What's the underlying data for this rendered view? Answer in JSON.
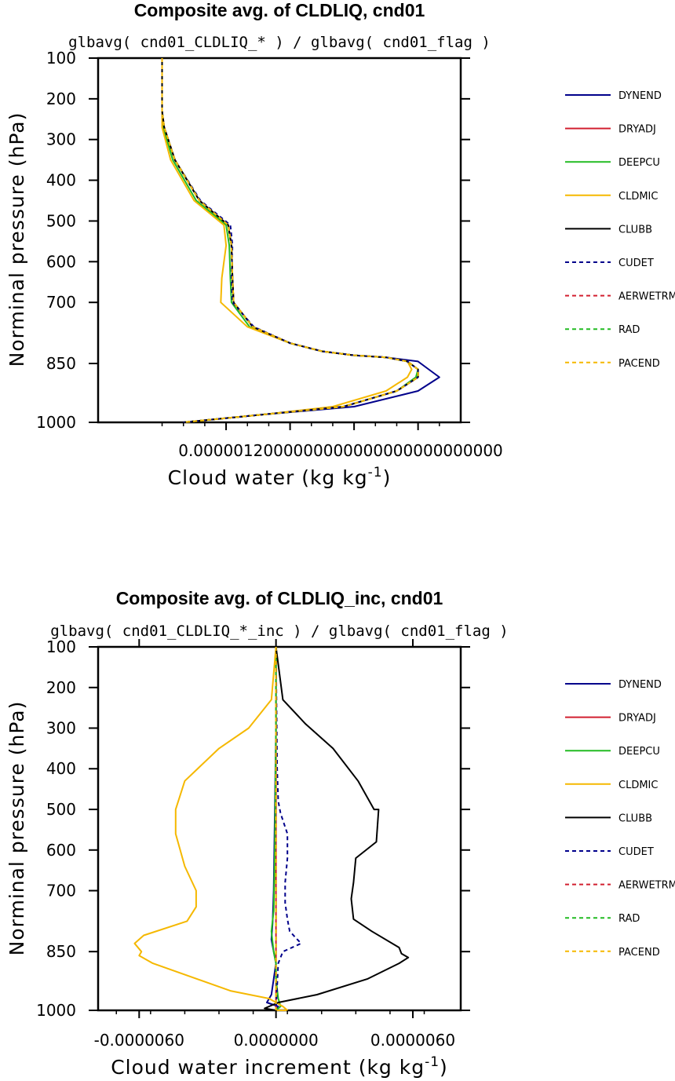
{
  "chart_data": [
    {
      "type": "line",
      "title": "Composite avg. of CLDLIQ, cnd01",
      "subtitle": "glbavg( cnd01_CLDLIQ_* ) / glbavg( cnd01_flag )",
      "xlabel": "Cloud water (kg kg",
      "xlabel_sup": "-1",
      "xlabel_end": ")",
      "ylabel": "Norminal pressure (hPa)",
      "xlim": [
        -6e-07,
        2.8e-06
      ],
      "ylim": [
        1000,
        100
      ],
      "y_ticks": [
        100,
        200,
        300,
        400,
        500,
        600,
        700,
        850,
        1000
      ],
      "x_tick_label": "0.0000012000000000000000000000000",
      "series": [
        {
          "name": "DYNEND",
          "color": "#00008b",
          "dash": "solid",
          "x": [
            0,
            0,
            2e-08,
            1.2e-07,
            3.5e-07,
            6.2e-07,
            6.5e-07,
            6.6e-07,
            6.7e-07,
            8.5e-07,
            1.2e-06,
            1.5e-06,
            1.8e-06,
            2.1e-06,
            2.4e-06,
            2.5e-06,
            2.6e-06,
            2.4e-06,
            1.8e-06,
            9.5e-07,
            2e-07
          ],
          "y": [
            100,
            230,
            270,
            350,
            450,
            510,
            560,
            640,
            700,
            760,
            800,
            820,
            830,
            835,
            845,
            865,
            885,
            920,
            960,
            980,
            1000
          ]
        },
        {
          "name": "DRYADJ",
          "color": "#d22030",
          "dash": "solid",
          "x": [
            0,
            0,
            2e-08,
            1.2e-07,
            3.5e-07,
            6.2e-07,
            6.5e-07,
            6.6e-07,
            6.7e-07,
            8.5e-07,
            1.2e-06,
            1.5e-06,
            1.8e-06,
            2.1e-06,
            2.3e-06,
            2.4e-06,
            2.4e-06,
            2.2e-06,
            1.7e-06,
            9.5e-07,
            2e-07
          ],
          "y": [
            100,
            230,
            270,
            350,
            450,
            510,
            560,
            640,
            700,
            760,
            800,
            820,
            830,
            835,
            845,
            865,
            885,
            920,
            960,
            980,
            1000
          ]
        },
        {
          "name": "DEEPCU",
          "color": "#22bb22",
          "dash": "solid",
          "x": [
            0,
            0,
            1e-08,
            1e-07,
            3.2e-07,
            6e-07,
            6.3e-07,
            6.4e-07,
            6.5e-07,
            8.2e-07,
            1.2e-06,
            1.5e-06,
            1.8e-06,
            2.1e-06,
            2.3e-06,
            2.4e-06,
            2.38e-06,
            2.2e-06,
            1.7e-06,
            9.5e-07,
            2e-07
          ],
          "y": [
            100,
            230,
            270,
            350,
            450,
            510,
            560,
            640,
            700,
            760,
            800,
            820,
            830,
            835,
            845,
            865,
            885,
            920,
            960,
            980,
            1000
          ]
        },
        {
          "name": "CLDMIC",
          "color": "#f5b800",
          "dash": "solid",
          "x": [
            0,
            0,
            0,
            8e-08,
            3e-07,
            5.8e-07,
            6e-07,
            5.6e-07,
            5.5e-07,
            8e-07,
            1.2e-06,
            1.5e-06,
            1.8e-06,
            2.1e-06,
            2.3e-06,
            2.34e-06,
            2.3e-06,
            2.1e-06,
            1.6e-06,
            9.5e-07,
            2e-07
          ],
          "y": [
            100,
            230,
            270,
            350,
            450,
            510,
            560,
            640,
            700,
            760,
            800,
            820,
            830,
            835,
            845,
            865,
            885,
            920,
            960,
            980,
            1000
          ]
        },
        {
          "name": "CLUBB",
          "color": "#000000",
          "dash": "solid",
          "x": [
            0,
            0,
            2e-08,
            1.2e-07,
            3.5e-07,
            6.2e-07,
            6.5e-07,
            6.6e-07,
            6.7e-07,
            8.5e-07,
            1.2e-06,
            1.5e-06,
            1.8e-06,
            2.1e-06,
            2.3e-06,
            2.4e-06,
            2.4e-06,
            2.2e-06,
            1.7e-06,
            9.5e-07,
            2e-07
          ],
          "y": [
            100,
            230,
            270,
            350,
            450,
            510,
            560,
            640,
            700,
            760,
            800,
            820,
            830,
            835,
            845,
            865,
            885,
            920,
            960,
            980,
            1000
          ]
        },
        {
          "name": "CUDET",
          "color": "#00008b",
          "dash": "dashed",
          "x": [
            0,
            0,
            2e-08,
            1.2e-07,
            3.6e-07,
            6.4e-07,
            6.6e-07,
            6.5e-07,
            6.6e-07,
            8.6e-07,
            1.2e-06,
            1.5e-06,
            1.8e-06,
            2.1e-06,
            2.3e-06,
            2.4e-06,
            2.4e-06,
            2.2e-06,
            1.7e-06,
            9.5e-07,
            2e-07
          ],
          "y": [
            100,
            230,
            270,
            350,
            450,
            510,
            560,
            640,
            700,
            760,
            800,
            820,
            830,
            835,
            845,
            865,
            885,
            920,
            960,
            980,
            1000
          ]
        },
        {
          "name": "AERWETRM",
          "color": "#d22030",
          "dash": "dashed",
          "x": [
            0,
            0,
            2e-08,
            1.2e-07,
            3.5e-07,
            6.2e-07,
            6.5e-07,
            6.6e-07,
            6.7e-07,
            8.5e-07,
            1.2e-06,
            1.5e-06,
            1.8e-06,
            2.1e-06,
            2.3e-06,
            2.4e-06,
            2.4e-06,
            2.2e-06,
            1.7e-06,
            9.5e-07,
            2e-07
          ],
          "y": [
            100,
            230,
            270,
            350,
            450,
            510,
            560,
            640,
            700,
            760,
            800,
            820,
            830,
            835,
            845,
            865,
            885,
            920,
            960,
            980,
            1000
          ]
        },
        {
          "name": "RAD",
          "color": "#22bb22",
          "dash": "dashed",
          "x": [
            0,
            0,
            2e-08,
            1.2e-07,
            3.5e-07,
            6.2e-07,
            6.5e-07,
            6.6e-07,
            6.7e-07,
            8.5e-07,
            1.2e-06,
            1.5e-06,
            1.8e-06,
            2.1e-06,
            2.3e-06,
            2.4e-06,
            2.4e-06,
            2.2e-06,
            1.7e-06,
            9.5e-07,
            2e-07
          ],
          "y": [
            100,
            230,
            270,
            350,
            450,
            510,
            560,
            640,
            700,
            760,
            800,
            820,
            830,
            835,
            845,
            865,
            885,
            920,
            960,
            980,
            1000
          ]
        },
        {
          "name": "PACEND",
          "color": "#f5b800",
          "dash": "dashed",
          "x": [
            0,
            0,
            2e-08,
            1.2e-07,
            3.5e-07,
            6.2e-07,
            6.5e-07,
            6.6e-07,
            6.7e-07,
            8.5e-07,
            1.2e-06,
            1.5e-06,
            1.8e-06,
            2.1e-06,
            2.3e-06,
            2.4e-06,
            2.4e-06,
            2.2e-06,
            1.7e-06,
            9.5e-07,
            2e-07
          ],
          "y": [
            100,
            230,
            270,
            350,
            450,
            510,
            560,
            640,
            700,
            760,
            800,
            820,
            830,
            835,
            845,
            865,
            885,
            920,
            960,
            980,
            1000
          ]
        }
      ]
    },
    {
      "type": "line",
      "title": "Composite avg. of CLDLIQ_inc, cnd01",
      "subtitle": "glbavg( cnd01_CLDLIQ_*_inc ) / glbavg( cnd01_flag )",
      "xlabel": "Cloud water increment (kg kg",
      "xlabel_sup": "-1",
      "xlabel_end": ")",
      "ylabel": "Norminal pressure (hPa)",
      "xlim": [
        -7.8e-06,
        8.1e-06
      ],
      "ylim": [
        1000,
        100
      ],
      "y_ticks": [
        100,
        200,
        300,
        400,
        500,
        600,
        700,
        850,
        1000
      ],
      "x_ticks": [
        -6e-06,
        0,
        6e-06
      ],
      "x_tick_labels": [
        "-0.0000060",
        "0.0000000",
        "0.0000060"
      ],
      "series": [
        {
          "name": "DYNEND",
          "color": "#00008b",
          "dash": "solid",
          "x": [
            0,
            0,
            -5e-08,
            -1e-07,
            -1.5e-07,
            -2e-07,
            -1e-07,
            0,
            -1e-07,
            -2e-07,
            -4e-07,
            1e-07,
            0
          ],
          "y": [
            100,
            300,
            500,
            700,
            780,
            820,
            850,
            880,
            920,
            960,
            980,
            990,
            1000
          ]
        },
        {
          "name": "DRYADJ",
          "color": "#d22030",
          "dash": "solid",
          "x": [
            0,
            0,
            0,
            0,
            0,
            0,
            0,
            0,
            0,
            0,
            0,
            0
          ],
          "y": [
            100,
            200,
            300,
            400,
            500,
            600,
            700,
            800,
            850,
            900,
            950,
            1000
          ]
        },
        {
          "name": "DEEPCU",
          "color": "#22bb22",
          "dash": "solid",
          "x": [
            0,
            0,
            -5e-08,
            -1e-07,
            -2e-07,
            -1e-07,
            0,
            0,
            1e-07,
            2e-07,
            0
          ],
          "y": [
            100,
            300,
            600,
            750,
            800,
            850,
            880,
            920,
            970,
            990,
            1000
          ]
        },
        {
          "name": "CLDMIC",
          "color": "#f5b800",
          "dash": "solid",
          "x": [
            0,
            -2e-07,
            -1.2e-06,
            -2.5e-06,
            -4e-06,
            -4.4e-06,
            -4.4e-06,
            -4e-06,
            -3.5e-06,
            -3.5e-06,
            -3.9e-06,
            -5.8e-06,
            -6.2e-06,
            -5.9e-06,
            -6e-06,
            -5.4e-06,
            -2e-06,
            -3e-07,
            3e-07,
            5e-07,
            0
          ],
          "y": [
            100,
            230,
            300,
            350,
            430,
            500,
            560,
            640,
            700,
            740,
            775,
            810,
            830,
            850,
            860,
            880,
            950,
            970,
            990,
            1000,
            1000
          ]
        },
        {
          "name": "CLUBB",
          "color": "#000000",
          "dash": "solid",
          "x": [
            0,
            3e-07,
            1.3e-06,
            2.5e-06,
            3.6e-06,
            4.3e-06,
            4.5e-06,
            4.4e-06,
            3.5e-06,
            3.4e-06,
            3.3e-06,
            3.4e-06,
            4.2e-06,
            5.4e-06,
            5.5e-06,
            5.8e-06,
            5.4e-06,
            4e-06,
            1.8e-06,
            1e-07,
            -5e-07,
            0
          ],
          "y": [
            100,
            230,
            290,
            350,
            430,
            500,
            500,
            580,
            620,
            680,
            720,
            770,
            800,
            840,
            855,
            865,
            880,
            920,
            960,
            980,
            995,
            1000
          ]
        },
        {
          "name": "CUDET",
          "color": "#00008b",
          "dash": "dashed",
          "x": [
            0,
            5e-08,
            1e-07,
            2e-07,
            5e-07,
            5e-07,
            4e-07,
            4e-07,
            5e-07,
            6e-07,
            1.1e-06,
            3e-07,
            1e-07,
            0
          ],
          "y": [
            100,
            400,
            480,
            510,
            560,
            620,
            680,
            730,
            770,
            800,
            830,
            850,
            880,
            1000
          ]
        },
        {
          "name": "AERWETRM",
          "color": "#d22030",
          "dash": "dashed",
          "x": [
            0,
            0,
            0,
            0
          ],
          "y": [
            100,
            500,
            900,
            1000
          ]
        },
        {
          "name": "RAD",
          "color": "#22bb22",
          "dash": "dashed",
          "x": [
            0,
            0,
            0,
            0
          ],
          "y": [
            100,
            500,
            900,
            1000
          ]
        },
        {
          "name": "PACEND",
          "color": "#f5b800",
          "dash": "dashed",
          "x": [
            0,
            0,
            0,
            0
          ],
          "y": [
            100,
            500,
            900,
            1000
          ]
        }
      ]
    }
  ]
}
